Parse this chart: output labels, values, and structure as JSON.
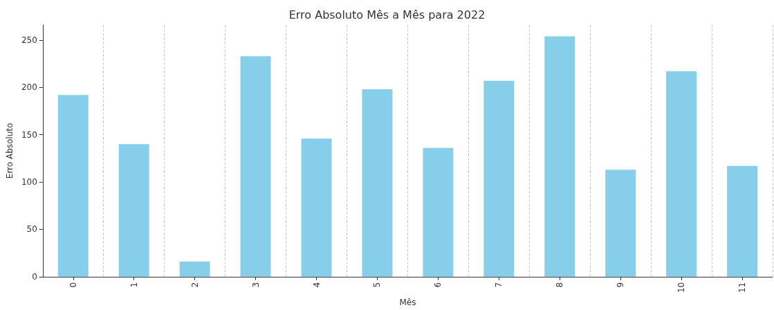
{
  "chart_data": {
    "type": "bar",
    "title": "Erro Absoluto Mês a Mês para 2022",
    "xlabel": "Mês",
    "ylabel": "Erro Absoluto",
    "categories": [
      "0",
      "1",
      "2",
      "3",
      "4",
      "5",
      "6",
      "7",
      "8",
      "9",
      "10",
      "11"
    ],
    "values": [
      192,
      140,
      16,
      233,
      146,
      198,
      136,
      207,
      254,
      113,
      217,
      117
    ],
    "color": "#87ceeb",
    "ylim": [
      0,
      266
    ],
    "yticks": [
      0,
      50,
      100,
      150,
      200,
      250
    ],
    "grid": "x"
  }
}
